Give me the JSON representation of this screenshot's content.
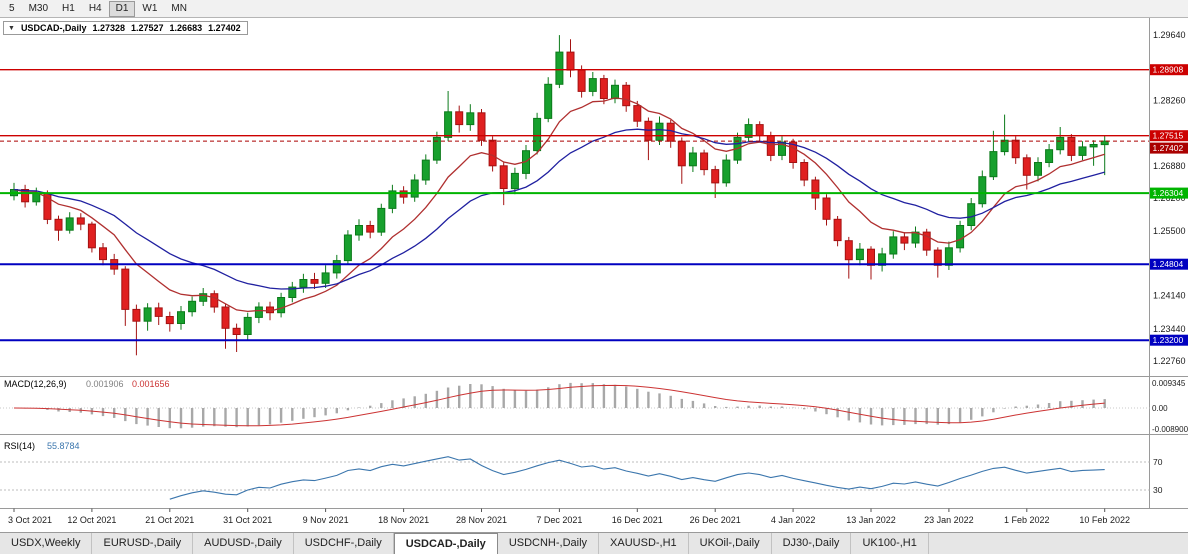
{
  "toolbar": {
    "timeframes": [
      {
        "label": "5",
        "active": false
      },
      {
        "label": "M30",
        "active": false
      },
      {
        "label": "H1",
        "active": false
      },
      {
        "label": "H4",
        "active": false
      },
      {
        "label": "D1",
        "active": true
      },
      {
        "label": "W1",
        "active": false
      },
      {
        "label": "MN",
        "active": false
      }
    ]
  },
  "chart": {
    "title": {
      "collapse_icon": "▼",
      "symbol": "USDCAD-,Daily",
      "open": "1.27328",
      "high": "1.27527",
      "low": "1.26683",
      "close": "1.27402"
    }
  },
  "colors": {
    "bull": "#17a02d",
    "bull_stroke": "#0b7a1a",
    "bear": "#e02020",
    "bear_stroke": "#a31212",
    "ema_fast": "#b03030",
    "ema_slow": "#2020a0",
    "macd_hist": "#a8a8a8",
    "macd_signal": "#cc3333",
    "rsi": "#3b76ad",
    "resistance": "#cc0000",
    "support_green": "#00b400",
    "support_blue": "#0000c0",
    "current_price": "#aa0000"
  },
  "chart_data": {
    "type": "candlestick",
    "title": "USDCAD-,Daily",
    "price_range": {
      "min": 1.2257,
      "max": 1.3
    },
    "y_axis_ticks": [
      "1.29640",
      "1.28260",
      "1.26880",
      "1.26200",
      "1.25500",
      "1.24140",
      "1.23440",
      "1.22760"
    ],
    "x_labels": [
      "3 Oct 2021",
      "12 Oct 2021",
      "21 Oct 2021",
      "31 Oct 2021",
      "9 Nov 2021",
      "18 Nov 2021",
      "28 Nov 2021",
      "7 Dec 2021",
      "16 Dec 2021",
      "26 Dec 2021",
      "4 Jan 2022",
      "13 Jan 2022",
      "23 Jan 2022",
      "1 Feb 2022",
      "10 Feb 2022"
    ],
    "x_label_indices": [
      0,
      7,
      14,
      21,
      28,
      35,
      42,
      49,
      56,
      63,
      70,
      77,
      84,
      91,
      98
    ],
    "hlines": [
      {
        "price": 1.28908,
        "label": "1.28908",
        "color": "#cc0000",
        "width": 1.4
      },
      {
        "price": 1.27515,
        "label": "1.27515",
        "color": "#cc0000",
        "width": 1.4
      },
      {
        "price": 1.26304,
        "label": "1.26304",
        "color": "#00b400",
        "width": 2
      },
      {
        "price": 1.24804,
        "label": "1.24804",
        "color": "#0000c0",
        "width": 2
      },
      {
        "price": 1.232,
        "label": "1.23200",
        "color": "#0000c0",
        "width": 2
      }
    ],
    "current_price": {
      "price": 1.27402,
      "label": "1.27402",
      "color": "#aa0000"
    },
    "overlays": [
      {
        "name": "ema-fast",
        "period": 9,
        "color": "#b03030"
      },
      {
        "name": "ema-slow",
        "period": 21,
        "color": "#2020a0"
      }
    ],
    "sub_indicators": [
      {
        "name": "MACD",
        "label": "MACD(12,26,9)",
        "values": [
          "0.001906",
          "0.001656"
        ],
        "axis_labels": [
          "0.009345",
          "0.00",
          "-0.008900"
        ],
        "scale": {
          "max": 0.009345,
          "min": -0.0089
        }
      },
      {
        "name": "RSI",
        "label": "RSI(14)",
        "value": "55.8784",
        "levels": [
          70,
          30
        ]
      }
    ],
    "ohlc": [
      [
        1.2625,
        1.2652,
        1.2615,
        1.2638
      ],
      [
        1.2638,
        1.2648,
        1.26,
        1.2612
      ],
      [
        1.2612,
        1.2642,
        1.2604,
        1.263
      ],
      [
        1.263,
        1.2636,
        1.2565,
        1.2575
      ],
      [
        1.2575,
        1.2583,
        1.253,
        1.2552
      ],
      [
        1.2552,
        1.259,
        1.2545,
        1.2578
      ],
      [
        1.2578,
        1.2588,
        1.2552,
        1.2565
      ],
      [
        1.2565,
        1.257,
        1.2505,
        1.2515
      ],
      [
        1.2515,
        1.2525,
        1.2478,
        1.249
      ],
      [
        1.249,
        1.2502,
        1.2458,
        1.247
      ],
      [
        1.247,
        1.2476,
        1.235,
        1.2385
      ],
      [
        1.2385,
        1.2395,
        1.2288,
        1.236
      ],
      [
        1.236,
        1.2398,
        1.234,
        1.2388
      ],
      [
        1.2388,
        1.2399,
        1.2352,
        1.237
      ],
      [
        1.237,
        1.238,
        1.2338,
        1.2355
      ],
      [
        1.2355,
        1.2392,
        1.2342,
        1.238
      ],
      [
        1.238,
        1.2412,
        1.237,
        1.2402
      ],
      [
        1.2402,
        1.243,
        1.2392,
        1.2418
      ],
      [
        1.2418,
        1.2425,
        1.2378,
        1.239
      ],
      [
        1.239,
        1.2396,
        1.2302,
        1.2345
      ],
      [
        1.2345,
        1.2355,
        1.2295,
        1.2332
      ],
      [
        1.2332,
        1.2378,
        1.232,
        1.2368
      ],
      [
        1.2368,
        1.24,
        1.2356,
        1.239
      ],
      [
        1.239,
        1.2401,
        1.2362,
        1.2378
      ],
      [
        1.2378,
        1.242,
        1.2368,
        1.241
      ],
      [
        1.241,
        1.2443,
        1.24,
        1.2432
      ],
      [
        1.2432,
        1.246,
        1.242,
        1.2448
      ],
      [
        1.2448,
        1.2462,
        1.2428,
        1.244
      ],
      [
        1.244,
        1.2478,
        1.243,
        1.2462
      ],
      [
        1.2462,
        1.25,
        1.245,
        1.2488
      ],
      [
        1.2488,
        1.2552,
        1.248,
        1.2542
      ],
      [
        1.2542,
        1.2575,
        1.253,
        1.2562
      ],
      [
        1.2562,
        1.2572,
        1.2535,
        1.2548
      ],
      [
        1.2548,
        1.2608,
        1.254,
        1.2598
      ],
      [
        1.2598,
        1.2648,
        1.2588,
        1.2635
      ],
      [
        1.2635,
        1.2645,
        1.2608,
        1.2622
      ],
      [
        1.2622,
        1.267,
        1.2612,
        1.2658
      ],
      [
        1.2658,
        1.2712,
        1.2648,
        1.27
      ],
      [
        1.27,
        1.276,
        1.2692,
        1.2748
      ],
      [
        1.2748,
        1.2846,
        1.274,
        1.2802
      ],
      [
        1.2802,
        1.2815,
        1.2758,
        1.2775
      ],
      [
        1.2775,
        1.2818,
        1.2762,
        1.28
      ],
      [
        1.28,
        1.2808,
        1.273,
        1.2742
      ],
      [
        1.2742,
        1.275,
        1.2676,
        1.2688
      ],
      [
        1.2688,
        1.2695,
        1.2605,
        1.264
      ],
      [
        1.264,
        1.2684,
        1.2628,
        1.2672
      ],
      [
        1.2672,
        1.2732,
        1.266,
        1.272
      ],
      [
        1.272,
        1.28,
        1.2712,
        1.2788
      ],
      [
        1.2788,
        1.2875,
        1.278,
        1.286
      ],
      [
        1.286,
        1.2964,
        1.2852,
        1.2928
      ],
      [
        1.2928,
        1.2955,
        1.2875,
        1.289
      ],
      [
        1.289,
        1.29,
        1.2832,
        1.2845
      ],
      [
        1.2845,
        1.2886,
        1.2835,
        1.2872
      ],
      [
        1.2872,
        1.288,
        1.2818,
        1.283
      ],
      [
        1.283,
        1.287,
        1.282,
        1.2858
      ],
      [
        1.2858,
        1.2865,
        1.2802,
        1.2815
      ],
      [
        1.2815,
        1.2825,
        1.277,
        1.2782
      ],
      [
        1.2782,
        1.279,
        1.27,
        1.2742
      ],
      [
        1.2742,
        1.2792,
        1.2732,
        1.2778
      ],
      [
        1.2778,
        1.2785,
        1.2726,
        1.274
      ],
      [
        1.274,
        1.2748,
        1.265,
        1.2688
      ],
      [
        1.2688,
        1.2728,
        1.2675,
        1.2715
      ],
      [
        1.2715,
        1.2722,
        1.2668,
        1.268
      ],
      [
        1.268,
        1.2688,
        1.262,
        1.2652
      ],
      [
        1.2652,
        1.2712,
        1.2644,
        1.27
      ],
      [
        1.27,
        1.2758,
        1.2692,
        1.2748
      ],
      [
        1.2748,
        1.2788,
        1.2738,
        1.2775
      ],
      [
        1.2775,
        1.2782,
        1.274,
        1.2752
      ],
      [
        1.2752,
        1.276,
        1.2698,
        1.271
      ],
      [
        1.271,
        1.275,
        1.27,
        1.2738
      ],
      [
        1.2738,
        1.2745,
        1.2682,
        1.2695
      ],
      [
        1.2695,
        1.2702,
        1.2645,
        1.2658
      ],
      [
        1.2658,
        1.2665,
        1.2595,
        1.262
      ],
      [
        1.262,
        1.2628,
        1.2562,
        1.2575
      ],
      [
        1.2575,
        1.2582,
        1.2518,
        1.253
      ],
      [
        1.253,
        1.2538,
        1.245,
        1.249
      ],
      [
        1.249,
        1.2525,
        1.2478,
        1.2512
      ],
      [
        1.2512,
        1.2518,
        1.2448,
        1.2478
      ],
      [
        1.2478,
        1.2515,
        1.2465,
        1.2502
      ],
      [
        1.2502,
        1.255,
        1.2492,
        1.2538
      ],
      [
        1.2538,
        1.2548,
        1.251,
        1.2525
      ],
      [
        1.2525,
        1.256,
        1.2515,
        1.2548
      ],
      [
        1.2548,
        1.2555,
        1.2498,
        1.251
      ],
      [
        1.251,
        1.2516,
        1.2452,
        1.2478
      ],
      [
        1.2478,
        1.2528,
        1.2468,
        1.2515
      ],
      [
        1.2515,
        1.2572,
        1.2505,
        1.2562
      ],
      [
        1.2562,
        1.262,
        1.2552,
        1.2608
      ],
      [
        1.2608,
        1.2678,
        1.26,
        1.2665
      ],
      [
        1.2665,
        1.2762,
        1.2658,
        1.2718
      ],
      [
        1.2718,
        1.2796,
        1.271,
        1.2742
      ],
      [
        1.2742,
        1.275,
        1.2692,
        1.2705
      ],
      [
        1.2705,
        1.2712,
        1.2638,
        1.2668
      ],
      [
        1.2668,
        1.2706,
        1.2655,
        1.2695
      ],
      [
        1.2695,
        1.2734,
        1.2685,
        1.2722
      ],
      [
        1.2722,
        1.277,
        1.2712,
        1.2748
      ],
      [
        1.2748,
        1.2755,
        1.2698,
        1.271
      ],
      [
        1.271,
        1.274,
        1.27,
        1.2728
      ],
      [
        1.2728,
        1.2742,
        1.2688,
        1.2733
      ],
      [
        1.27328,
        1.27527,
        1.26683,
        1.27402
      ]
    ]
  },
  "tabs": [
    {
      "label": "USDX,Weekly",
      "active": false
    },
    {
      "label": "EURUSD-,Daily",
      "active": false
    },
    {
      "label": "AUDUSD-,Daily",
      "active": false
    },
    {
      "label": "USDCHF-,Daily",
      "active": false
    },
    {
      "label": "USDCAD-,Daily",
      "active": true
    },
    {
      "label": "USDCNH-,Daily",
      "active": false
    },
    {
      "label": "XAUUSD-,H1",
      "active": false
    },
    {
      "label": "UKOil-,Daily",
      "active": false
    },
    {
      "label": "DJ30-,Daily",
      "active": false
    },
    {
      "label": "UK100-,H1",
      "active": false
    }
  ]
}
